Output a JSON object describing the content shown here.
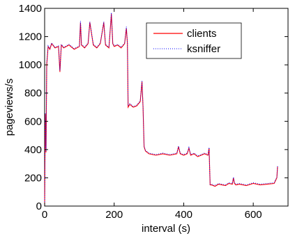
{
  "chart_data": {
    "type": "line",
    "xlabel": "interval (s)",
    "ylabel": "pageviews/s",
    "xlim": [
      0,
      700
    ],
    "ylim": [
      0,
      1400
    ],
    "xticks": [
      "0",
      "200",
      "400",
      "600"
    ],
    "yticks": [
      "0",
      "200",
      "400",
      "600",
      "800",
      "1000",
      "1200",
      "1400"
    ],
    "grid": false,
    "legend_position": "top-right",
    "series": [
      {
        "name": "clients",
        "color": "#ff0000",
        "style": "solid",
        "x": [
          0,
          2,
          4,
          6,
          10,
          15,
          20,
          30,
          40,
          44,
          48,
          55,
          70,
          85,
          100,
          103,
          106,
          115,
          125,
          130,
          140,
          150,
          160,
          170,
          175,
          185,
          192,
          196,
          200,
          210,
          220,
          230,
          235,
          238,
          240,
          245,
          255,
          265,
          275,
          280,
          283,
          286,
          290,
          300,
          320,
          340,
          360,
          380,
          385,
          390,
          400,
          410,
          415,
          420,
          430,
          440,
          450,
          460,
          470,
          473,
          476,
          480,
          490,
          500,
          510,
          520,
          530,
          540,
          543,
          546,
          550,
          560,
          580,
          600,
          620,
          640,
          660,
          668,
          670
        ],
        "y": [
          0,
          650,
          380,
          1000,
          1130,
          1110,
          1150,
          1120,
          1130,
          950,
          1140,
          1120,
          1140,
          1110,
          1130,
          1300,
          1140,
          1120,
          1150,
          1300,
          1140,
          1120,
          1150,
          1300,
          1140,
          1120,
          1360,
          1150,
          1130,
          1140,
          1120,
          1150,
          1260,
          1150,
          700,
          720,
          700,
          710,
          740,
          880,
          700,
          420,
          390,
          370,
          360,
          370,
          360,
          370,
          420,
          370,
          360,
          370,
          410,
          360,
          370,
          350,
          360,
          370,
          360,
          410,
          150,
          150,
          140,
          155,
          150,
          145,
          160,
          155,
          200,
          160,
          150,
          155,
          145,
          160,
          150,
          155,
          160,
          200,
          280
        ]
      },
      {
        "name": "ksniffer",
        "color": "#0000ff",
        "style": "dotted",
        "x": [
          0,
          2,
          4,
          6,
          10,
          15,
          20,
          30,
          40,
          44,
          48,
          55,
          70,
          85,
          100,
          103,
          106,
          115,
          125,
          130,
          140,
          150,
          160,
          170,
          175,
          185,
          192,
          196,
          200,
          210,
          220,
          230,
          235,
          238,
          240,
          245,
          255,
          265,
          275,
          280,
          283,
          286,
          290,
          300,
          320,
          340,
          360,
          380,
          385,
          390,
          400,
          410,
          415,
          420,
          430,
          440,
          450,
          460,
          470,
          473,
          476,
          480,
          490,
          500,
          510,
          520,
          530,
          540,
          543,
          546,
          550,
          560,
          580,
          600,
          620,
          640,
          660,
          668,
          670
        ],
        "y": [
          0,
          660,
          390,
          1010,
          1135,
          1115,
          1155,
          1125,
          1135,
          960,
          1145,
          1125,
          1145,
          1115,
          1135,
          1310,
          1145,
          1125,
          1155,
          1305,
          1145,
          1125,
          1155,
          1305,
          1145,
          1125,
          1370,
          1155,
          1135,
          1145,
          1125,
          1155,
          1270,
          1155,
          710,
          725,
          705,
          715,
          745,
          890,
          705,
          425,
          395,
          375,
          365,
          375,
          365,
          375,
          425,
          375,
          365,
          375,
          415,
          365,
          375,
          355,
          365,
          375,
          365,
          415,
          155,
          155,
          145,
          160,
          155,
          150,
          165,
          160,
          205,
          165,
          155,
          160,
          150,
          165,
          155,
          160,
          165,
          205,
          285
        ]
      }
    ]
  }
}
